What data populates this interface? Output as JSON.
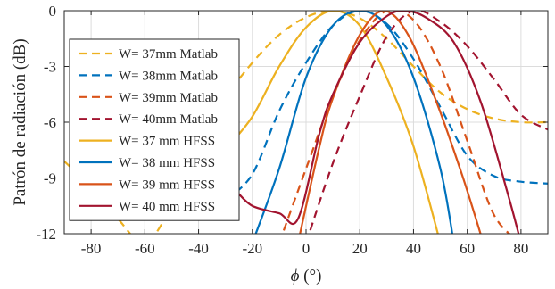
{
  "chart_data": {
    "type": "line",
    "xlabel_symbol": "ϕ",
    "xlabel_unit": "(°)",
    "ylabel": "Patrón de radiación (dB)",
    "xlim": [
      -90,
      90
    ],
    "ylim": [
      -12,
      0
    ],
    "xticks": [
      -80,
      -60,
      -40,
      -20,
      0,
      20,
      40,
      60,
      80
    ],
    "yticks": [
      0,
      -3,
      -6,
      -9,
      -12
    ],
    "grid": true,
    "legend_position": "left",
    "series": [
      {
        "name": "W= 37mm Matlab",
        "color": "#EDB120",
        "dash": true,
        "x": [
          -90,
          -80,
          -70,
          -60,
          -50,
          -40,
          -30,
          -20,
          -10,
          0,
          10,
          20,
          30,
          40,
          50,
          60,
          70,
          80,
          90
        ],
        "y": [
          -8.1,
          -9.5,
          -11.2,
          -12.5,
          -10.5,
          -7.2,
          -4.7,
          -2.8,
          -1.3,
          -0.35,
          0,
          -0.4,
          -1.5,
          -3.0,
          -4.4,
          -5.3,
          -5.8,
          -6.0,
          -6.0
        ]
      },
      {
        "name": "W= 38mm Matlab",
        "color": "#0072BD",
        "dash": true,
        "x": [
          -30,
          -20,
          -10,
          0,
          10,
          20,
          30,
          40,
          50,
          60,
          70,
          80,
          90
        ],
        "y": [
          -10.2,
          -8.8,
          -5.4,
          -2.8,
          -0.8,
          0,
          -0.7,
          -2.6,
          -5.2,
          -7.8,
          -8.9,
          -9.2,
          -9.3
        ]
      },
      {
        "name": "W= 39mm Matlab",
        "color": "#D95319",
        "dash": true,
        "x": [
          -10,
          0,
          10,
          20,
          30,
          40,
          50,
          60,
          70,
          80
        ],
        "y": [
          -12.5,
          -8.5,
          -4.6,
          -1.6,
          0,
          -0.5,
          -3.0,
          -7.0,
          -11.0,
          -12.5
        ]
      },
      {
        "name": "W= 40mm Matlab",
        "color": "#A2142F",
        "dash": true,
        "x": [
          0,
          10,
          20,
          30,
          40,
          50,
          60,
          70,
          80,
          90
        ],
        "y": [
          -12.5,
          -8.2,
          -4.6,
          -1.4,
          0,
          -0.6,
          -1.9,
          -3.7,
          -5.6,
          -6.4
        ]
      },
      {
        "name": "W= 37 mm HFSS",
        "color": "#EDB120",
        "dash": false,
        "x": [
          -40,
          -30,
          -20,
          -10,
          0,
          10,
          20,
          30,
          40,
          50
        ],
        "y": [
          -9.5,
          -7.5,
          -5.7,
          -3.0,
          -0.9,
          0,
          -0.8,
          -3.6,
          -7.3,
          -12.5
        ]
      },
      {
        "name": "W= 38 mm HFSS",
        "color": "#0072BD",
        "dash": false,
        "x": [
          -20,
          -10,
          0,
          10,
          20,
          30,
          40,
          50,
          55
        ],
        "y": [
          -12.5,
          -8.5,
          -3.6,
          -0.8,
          0,
          -0.8,
          -3.6,
          -8.5,
          -12.5
        ]
      },
      {
        "name": "W= 39 mm HFSS",
        "color": "#D95319",
        "dash": false,
        "x": [
          -3,
          5,
          10,
          20,
          29,
          38,
          48,
          58,
          66
        ],
        "y": [
          -12.5,
          -7.3,
          -4.7,
          -1.3,
          0,
          -1.3,
          -4.7,
          -8.8,
          -12.5
        ]
      },
      {
        "name": "W= 40 mm HFSS",
        "color": "#A2142F",
        "dash": false,
        "x": [
          -26,
          -20,
          -10,
          -3,
          5,
          10,
          20,
          30,
          37,
          45,
          55,
          65,
          75,
          80
        ],
        "y": [
          -9.7,
          -10.5,
          -10.9,
          -11.2,
          -6.6,
          -4.5,
          -1.7,
          -0.3,
          0,
          -0.4,
          -1.7,
          -4.9,
          -9.8,
          -12.5
        ]
      }
    ]
  }
}
